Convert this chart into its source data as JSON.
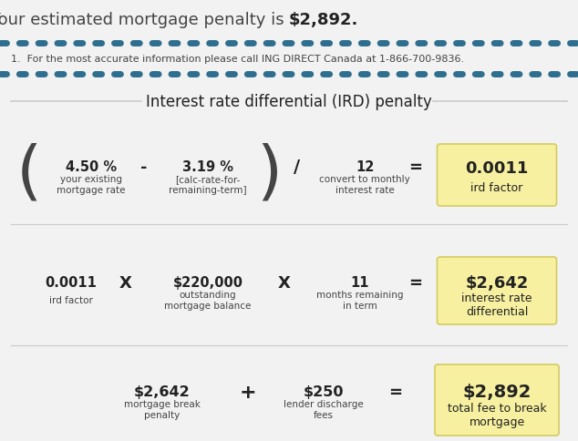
{
  "title_normal": "Your estimated mortgage penalty is ",
  "title_bold": "$2,892",
  "title_suffix": ".",
  "footnote": "1.  For the most accurate information please call ING DIRECT Canada at 1-866-700-9836.",
  "section_title": "Interest rate differential (IRD) penalty",
  "bg_color": "#f2f2f2",
  "yellow_bg": "#f7f0a0",
  "yellow_border": "#d4cc60",
  "dark_text": "#444444",
  "bold_text": "#222222",
  "dotted_color": "#2e6e8e",
  "gray_line": "#cccccc",
  "row1": {
    "val1": "4.50 %",
    "lbl1": "your existing\nmortgage rate",
    "op1": "-",
    "val2": "3.19 %",
    "lbl2": "[calc-rate-for-\nremaining-term]",
    "op2": "/",
    "val3": "12",
    "lbl3": "convert to monthly\ninterest rate",
    "eq": "=",
    "result": "0.0011",
    "result_lbl": "ird factor"
  },
  "row2": {
    "val1": "0.0011",
    "lbl1": "ird factor",
    "op1": "X",
    "val2": "$220,000",
    "lbl2": "outstanding\nmortgage balance",
    "op2": "X",
    "val3": "11",
    "lbl3": "months remaining\nin term",
    "eq": "=",
    "result": "$2,642",
    "result_lbl": "interest rate\ndifferential"
  },
  "row3": {
    "val1": "$2,642",
    "lbl1": "mortgage break\npenalty",
    "op1": "+",
    "val2": "$250",
    "lbl2": "lender discharge\nfees",
    "eq": "=",
    "result": "$2,892",
    "result_lbl": "total fee to break\nmortgage"
  }
}
